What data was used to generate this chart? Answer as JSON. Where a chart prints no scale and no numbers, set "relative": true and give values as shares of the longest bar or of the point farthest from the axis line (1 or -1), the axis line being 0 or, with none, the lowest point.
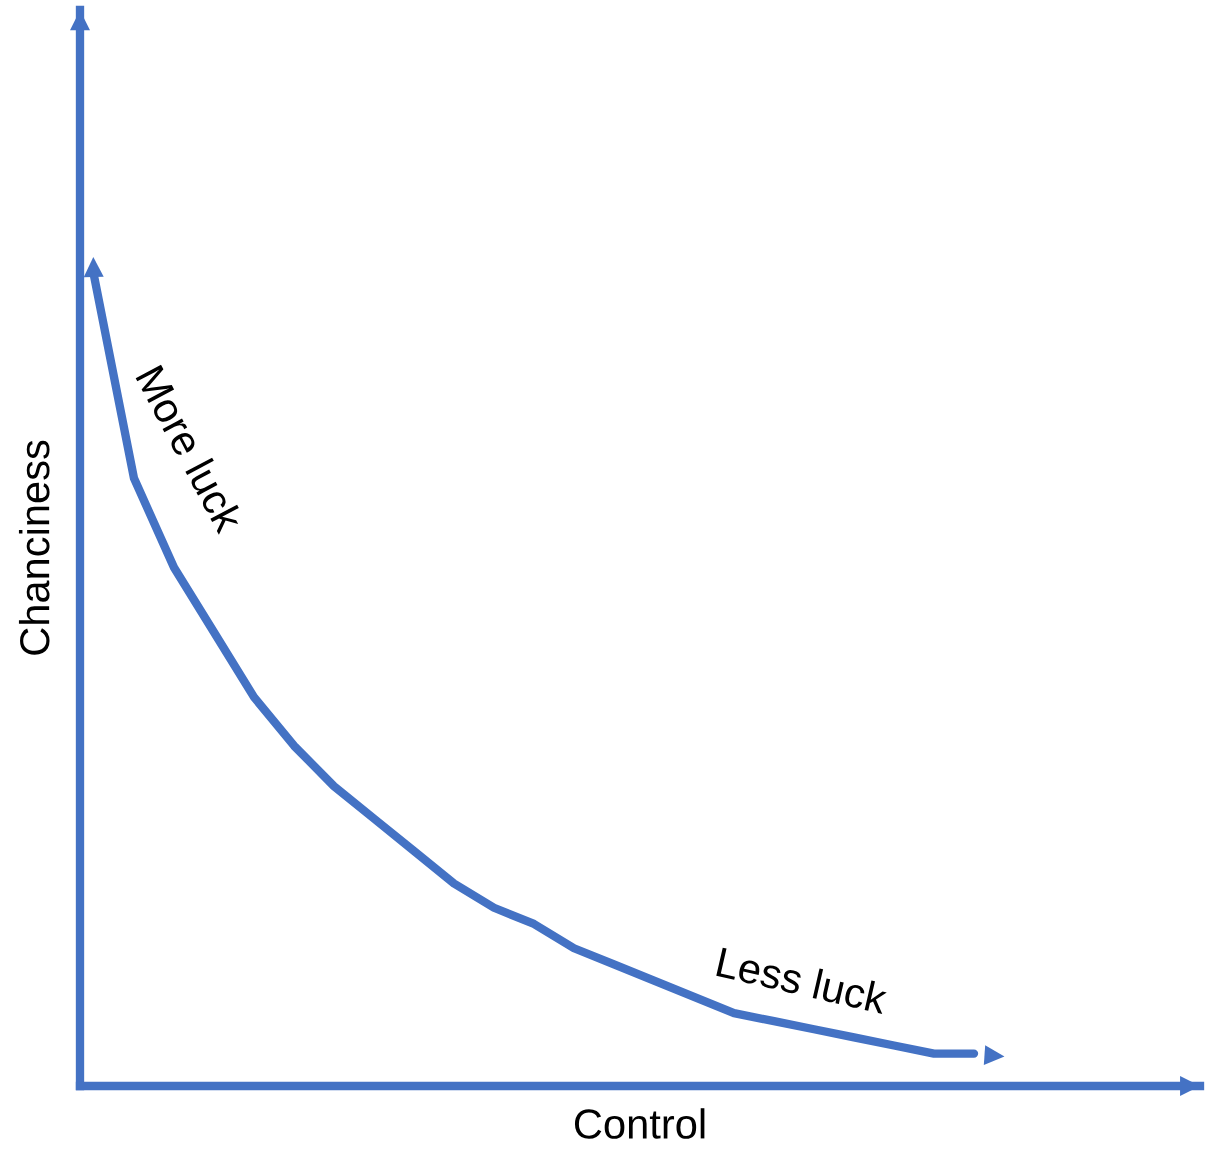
{
  "chart_data": {
    "type": "line",
    "relative": true,
    "xlabel": "Control",
    "ylabel": "Chanciness",
    "categories": [
      null,
      null,
      null,
      null,
      null,
      null,
      null,
      null,
      null,
      null,
      null,
      null,
      null,
      null,
      null,
      null,
      null,
      null,
      null,
      null,
      null,
      null,
      null
    ],
    "series": [
      {
        "color": "#4472c4",
        "values": [
          1,
          0.75,
          0.64,
          0.56,
          0.48,
          0.42,
          0.37,
          0.33,
          0.29,
          0.25,
          0.22,
          0.2,
          0.17,
          0.15,
          0.13,
          0.11,
          0.09,
          0.08,
          0.07,
          0.06,
          0.05,
          0.04,
          0.04
        ]
      }
    ],
    "annotations": [
      "More luck",
      "Less luck"
    ],
    "tick_labels": false,
    "marker": "none",
    "line_style": "solid"
  }
}
